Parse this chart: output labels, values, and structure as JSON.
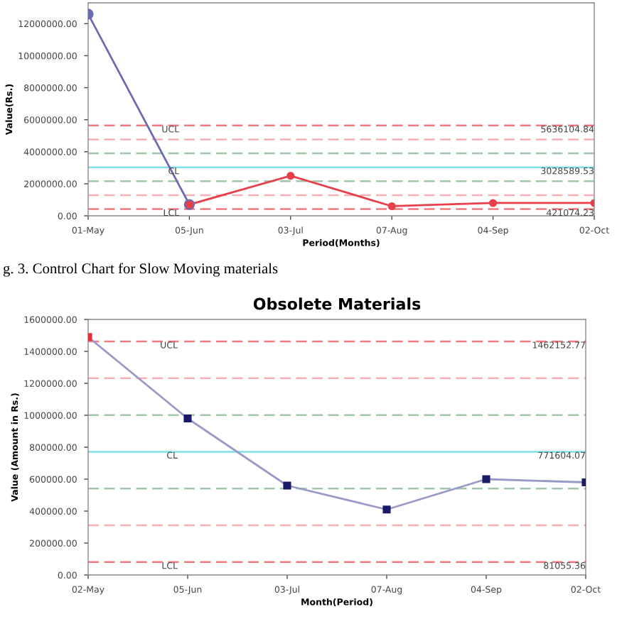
{
  "chart_data": [
    {
      "type": "line",
      "categories": [
        "01-May",
        "05-Jun",
        "03-Jul",
        "07-Aug",
        "04-Sep",
        "02-Oct"
      ],
      "series": [
        {
          "color": "#6b6bb0",
          "values": [
            12600000,
            700000,
            null,
            null,
            null,
            null
          ]
        },
        {
          "color": "#e8404a",
          "values": [
            null,
            700000,
            2500000,
            600000,
            800000,
            800000
          ]
        }
      ],
      "xlabel": "Period(Months)",
      "ylabel": "Value(Rs.)",
      "ylim": [
        0,
        13300000
      ],
      "yticks": [
        {
          "value": 0,
          "label": "0.00"
        },
        {
          "value": 2000000,
          "label": "2000000.00"
        },
        {
          "value": 4000000,
          "label": "4000000.00"
        },
        {
          "value": 6000000,
          "label": "6000000.00"
        },
        {
          "value": 8000000,
          "label": "8000000.00"
        },
        {
          "value": 10000000,
          "label": "10000000.00"
        },
        {
          "value": 12000000,
          "label": "12000000.00"
        }
      ],
      "marker": "circle",
      "grid": false,
      "legend": false,
      "ref_lines": [
        {
          "axis": "y",
          "value": 5636104.84,
          "label": "UCL",
          "color": "#f07a80",
          "line_style": "dashed"
        },
        {
          "axis": "y",
          "value": 4766933,
          "label": null,
          "color": "#f5b0b5",
          "line_style": "dashed"
        },
        {
          "axis": "y",
          "value": 3897762,
          "label": null,
          "color": "#a0c8a8",
          "line_style": "dashed"
        },
        {
          "axis": "y",
          "value": 3028589.53,
          "label": "CL",
          "color": "#7fe0e8",
          "line_style": "solid"
        },
        {
          "axis": "y",
          "value": 2159418,
          "label": null,
          "color": "#a0c8a8",
          "line_style": "dashed"
        },
        {
          "axis": "y",
          "value": 1290246,
          "label": null,
          "color": "#f5b0b5",
          "line_style": "dashed"
        },
        {
          "axis": "y",
          "value": 421074.23,
          "label": "LCL",
          "color": "#f07a80",
          "line_style": "dashed"
        }
      ],
      "annotations": [
        {
          "text": "5636104.84",
          "x": "02-Oct",
          "y": 5636104.84
        },
        {
          "text": "3028589.53",
          "x": "02-Oct",
          "y": 3028589.53
        },
        {
          "text": "421074.23",
          "x": "02-Oct",
          "y": 421074.23
        },
        "g. 3. Control Chart for Slow Moving materials"
      ]
    },
    {
      "type": "line",
      "title": "Obsolete Materials",
      "categories": [
        "02-May",
        "05-Jun",
        "03-Jul",
        "07-Aug",
        "04-Sep",
        "02-Oct"
      ],
      "series": [
        {
          "color": "#9a9ac8",
          "colors": [
            "#e8303a",
            "#1a1a6a",
            "#1a1a6a",
            "#1a1a6a",
            "#1a1a6a",
            "#1a1a6a"
          ],
          "values": [
            1490000,
            980000,
            560000,
            410000,
            600000,
            580000
          ]
        }
      ],
      "xlabel": "Month(Period)",
      "ylabel": "Value (Amount in Rs.)",
      "ylim": [
        0,
        1600000
      ],
      "yticks": [
        {
          "value": 0,
          "label": "0.00"
        },
        {
          "value": 200000,
          "label": "200000.00"
        },
        {
          "value": 400000,
          "label": "400000.00"
        },
        {
          "value": 600000,
          "label": "600000.00"
        },
        {
          "value": 800000,
          "label": "800000.00"
        },
        {
          "value": 1000000,
          "label": "1000000.00"
        },
        {
          "value": 1200000,
          "label": "1200000.00"
        },
        {
          "value": 1400000,
          "label": "1400000.00"
        },
        {
          "value": 1600000,
          "label": "1600000.00"
        }
      ],
      "marker": "square",
      "grid": false,
      "legend": false,
      "ref_lines": [
        {
          "axis": "y",
          "value": 1462152.77,
          "label": "UCL",
          "color": "#f07a80",
          "line_style": "dashed"
        },
        {
          "axis": "y",
          "value": 1231788,
          "label": null,
          "color": "#f5b0b5",
          "line_style": "dashed"
        },
        {
          "axis": "y",
          "value": 1001421,
          "label": null,
          "color": "#a0c8a8",
          "line_style": "dashed"
        },
        {
          "axis": "y",
          "value": 771604.07,
          "label": "CL",
          "color": "#7fe0e8",
          "line_style": "solid"
        },
        {
          "axis": "y",
          "value": 541421,
          "label": null,
          "color": "#a0c8a8",
          "line_style": "dashed"
        },
        {
          "axis": "y",
          "value": 311238,
          "label": null,
          "color": "#f5b0b5",
          "line_style": "dashed"
        },
        {
          "axis": "y",
          "value": 81055.36,
          "label": "LCL",
          "color": "#f07a80",
          "line_style": "dashed"
        }
      ],
      "annotations": [
        {
          "text": "1462152.77",
          "x": "02-Oct",
          "y": 1462152.77
        },
        {
          "text": "771604.07",
          "x": "02-Oct",
          "y": 771604.07
        },
        {
          "text": "81055.36",
          "x": "02-Oct",
          "y": 81055.36
        }
      ]
    }
  ]
}
